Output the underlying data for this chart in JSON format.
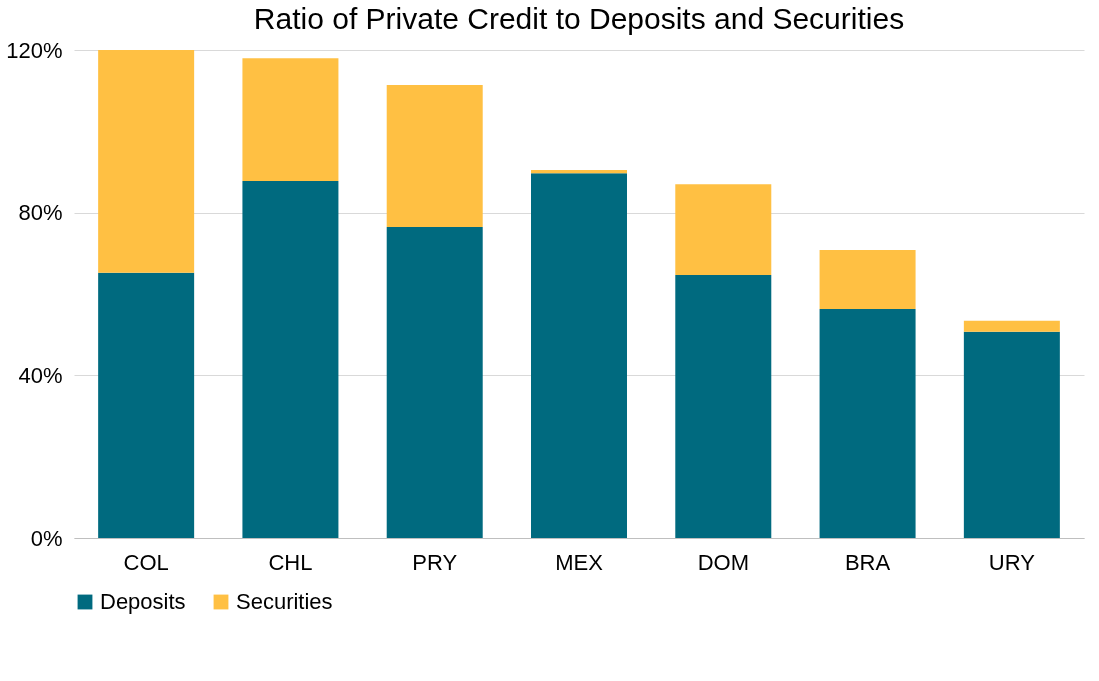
{
  "chart_data": {
    "type": "bar",
    "stacked": true,
    "title": "Ratio of Private Credit to Deposits and Securities",
    "categories": [
      "COL",
      "CHL",
      "PRY",
      "MEX",
      "DOM",
      "BRA",
      "URY"
    ],
    "series": [
      {
        "name": "Deposits",
        "color": "#006a7f",
        "values": [
          65.2,
          87.8,
          76.5,
          89.7,
          64.7,
          56.3,
          50.7
        ]
      },
      {
        "name": "Securities",
        "color": "#ffc043",
        "values": [
          54.8,
          30.2,
          34.9,
          0.8,
          22.3,
          14.5,
          2.7
        ]
      }
    ],
    "ylim": [
      0,
      120
    ],
    "yticks": [
      {
        "value": 0,
        "label": "0%"
      },
      {
        "value": 40,
        "label": "40%"
      },
      {
        "value": 80,
        "label": "80%"
      },
      {
        "value": 120,
        "label": "120%"
      }
    ],
    "grid": "y",
    "legend": "bottom"
  }
}
